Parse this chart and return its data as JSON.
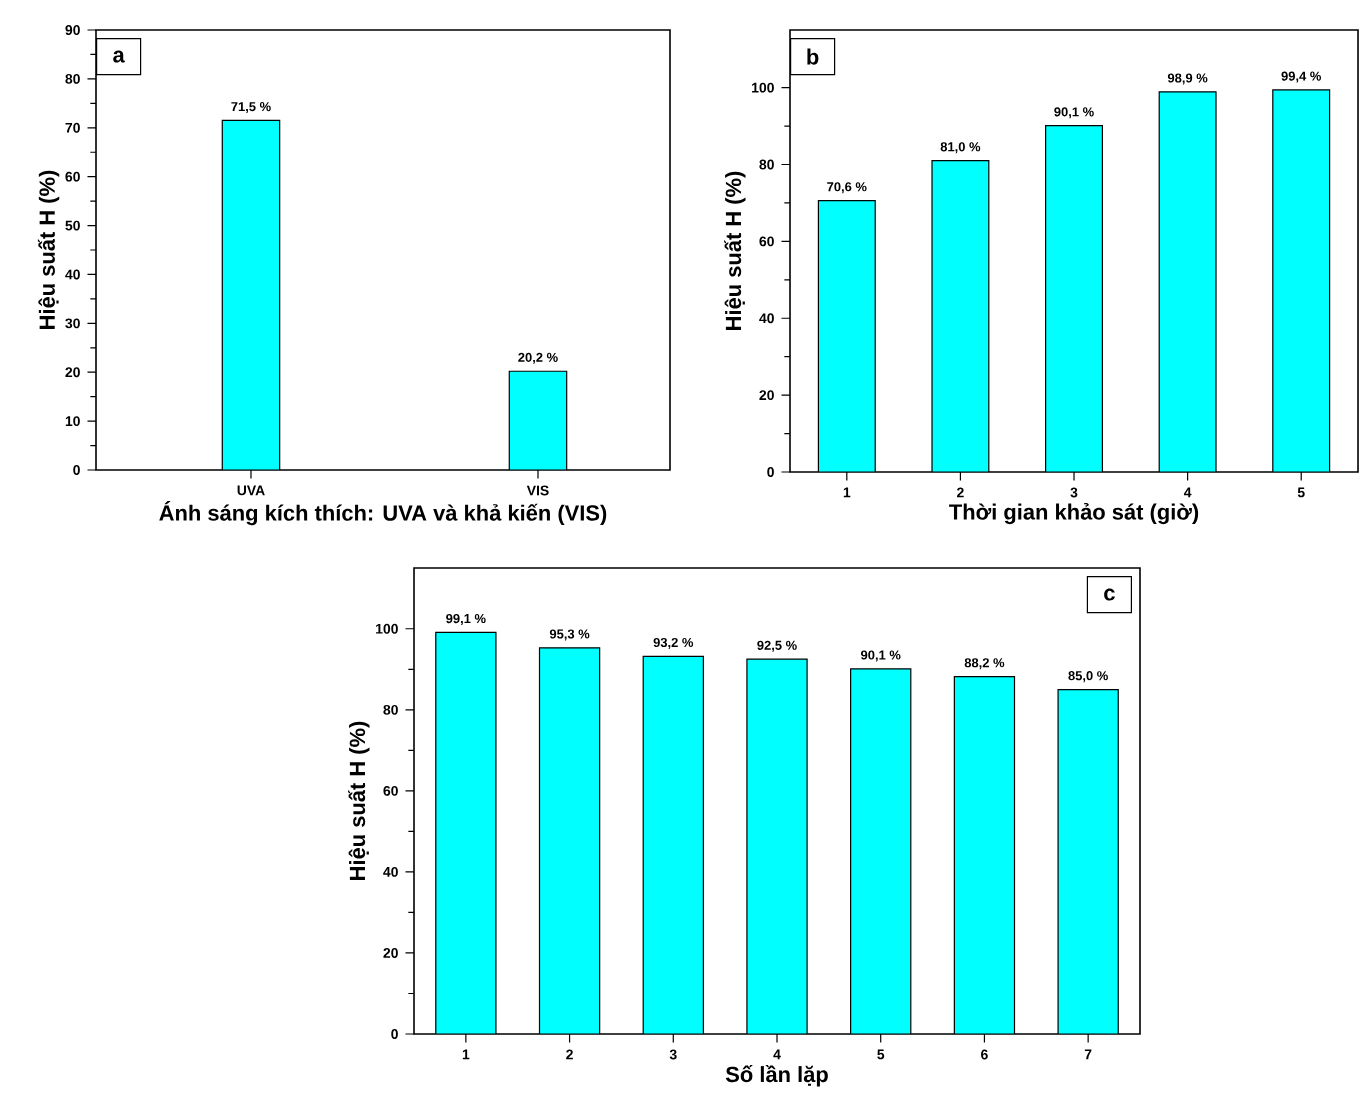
{
  "chart_data": [
    {
      "type": "bar",
      "categories": [
        "UVA",
        "VIS"
      ],
      "values": [
        71.5,
        20.2
      ],
      "value_labels": [
        "71,5 %",
        "20,2 %"
      ],
      "color": "#00ffff",
      "xlabel": "Ánh sáng kích thích: UVA và khả kiến (VIS)",
      "ylabel": "Hiệu suất H (%)",
      "ylim": [
        0,
        90
      ],
      "yticks": [
        0,
        10,
        20,
        30,
        40,
        50,
        60,
        70,
        80,
        90
      ],
      "annotations": [
        "a"
      ]
    },
    {
      "type": "bar",
      "categories": [
        "1",
        "2",
        "3",
        "4",
        "5"
      ],
      "values": [
        70.6,
        81.0,
        90.1,
        98.9,
        99.4
      ],
      "value_labels": [
        "70,6 %",
        "81,0 %",
        "90,1 %",
        "98,9 %",
        "99,4 %"
      ],
      "color": "#00ffff",
      "xlabel": "Thời gian khảo sát (giờ)",
      "ylabel": "Hiệu suất H (%)",
      "ylim": [
        0,
        115
      ],
      "yticks": [
        0,
        20,
        40,
        60,
        80,
        100
      ],
      "annotations": [
        "b"
      ]
    },
    {
      "type": "bar",
      "categories": [
        "1",
        "2",
        "3",
        "4",
        "5",
        "6",
        "7"
      ],
      "values": [
        99.1,
        95.3,
        93.2,
        92.5,
        90.1,
        88.2,
        85.0
      ],
      "value_labels": [
        "99,1 %",
        "95,3 %",
        "93,2 %",
        "92,5 %",
        "90,1 %",
        "88,2 %",
        "85,0 %"
      ],
      "color": "#00ffff",
      "xlabel": "Số lần lặp",
      "ylabel": "Hiệu suất H (%)",
      "ylim": [
        0,
        115
      ],
      "yticks": [
        0,
        20,
        40,
        60,
        80,
        100
      ],
      "annotations": [
        "c"
      ]
    }
  ]
}
